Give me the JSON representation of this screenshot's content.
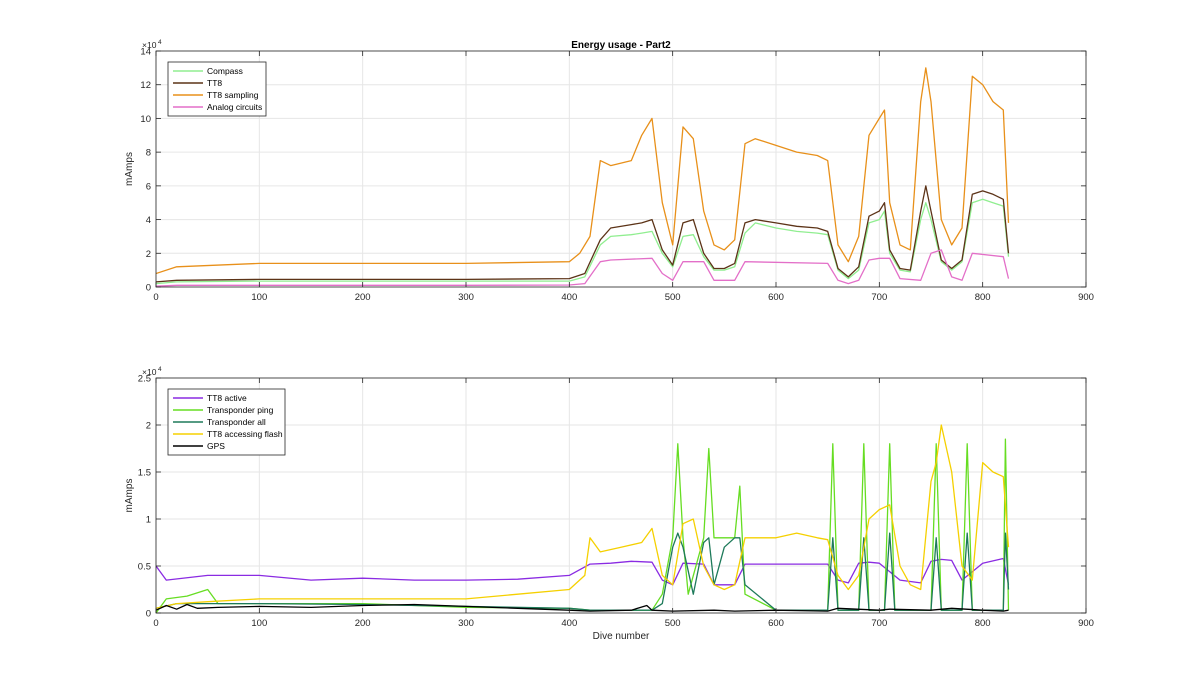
{
  "colors": {
    "compass": "#90ee90",
    "tt8": "#5c3317",
    "tt8_sampling": "#e8901a",
    "analog": "#e36fc8",
    "tt8_active": "#8a2be2",
    "transponder_ping": "#66dd22",
    "transponder_all": "#1e7a5a",
    "tt8_flash": "#f5d000",
    "gps": "#000000"
  },
  "chart_data": [
    {
      "type": "line",
      "title": "Energy usage - Part2",
      "xlabel": "",
      "ylabel": "mAmps",
      "exponent_label": "×10",
      "exponent": "4",
      "xlim": [
        0,
        900
      ],
      "ylim": [
        0,
        140000
      ],
      "xticks": [
        0,
        100,
        200,
        300,
        400,
        500,
        600,
        700,
        800,
        900
      ],
      "yticks": [
        0,
        20000,
        40000,
        60000,
        80000,
        100000,
        120000,
        140000
      ],
      "ytick_labels": [
        "0",
        "2",
        "4",
        "6",
        "8",
        "10",
        "12",
        "14"
      ],
      "grid": true,
      "legend": "top-left",
      "series": [
        {
          "name": "Compass",
          "color_key": "compass",
          "x": [
            0,
            20,
            100,
            200,
            300,
            400,
            415,
            430,
            440,
            460,
            470,
            480,
            490,
            500,
            510,
            520,
            530,
            540,
            550,
            560,
            570,
            580,
            600,
            620,
            640,
            650,
            660,
            670,
            680,
            690,
            700,
            705,
            710,
            720,
            730,
            740,
            745,
            750,
            760,
            770,
            780,
            790,
            800,
            810,
            820,
            825
          ],
          "values": [
            2000,
            3000,
            3500,
            3500,
            3500,
            3500,
            6000,
            25000,
            30000,
            31000,
            32000,
            33000,
            20000,
            12000,
            30000,
            31000,
            18000,
            10000,
            10000,
            12000,
            32000,
            38000,
            35000,
            33000,
            32000,
            31000,
            10000,
            5000,
            10000,
            38000,
            40000,
            45000,
            20000,
            10000,
            9000,
            40000,
            50000,
            40000,
            15000,
            10000,
            15000,
            50000,
            52000,
            50000,
            48000,
            18000
          ]
        },
        {
          "name": "TT8",
          "color_key": "tt8",
          "x": [
            0,
            20,
            100,
            200,
            300,
            400,
            415,
            430,
            440,
            460,
            470,
            480,
            490,
            500,
            510,
            520,
            530,
            540,
            550,
            560,
            570,
            580,
            600,
            620,
            640,
            650,
            660,
            670,
            680,
            690,
            700,
            705,
            710,
            720,
            730,
            740,
            745,
            750,
            760,
            770,
            780,
            790,
            800,
            810,
            820,
            825
          ],
          "values": [
            3000,
            4000,
            4500,
            4500,
            4500,
            5000,
            8000,
            28000,
            35000,
            37000,
            38000,
            40000,
            22000,
            13000,
            38000,
            40000,
            20000,
            11000,
            11000,
            14000,
            38000,
            40000,
            38000,
            36000,
            35000,
            33000,
            11000,
            6000,
            12000,
            42000,
            45000,
            50000,
            22000,
            11000,
            10000,
            45000,
            60000,
            45000,
            16000,
            11000,
            16000,
            55000,
            57000,
            55000,
            52000,
            20000
          ]
        },
        {
          "name": "TT8 sampling",
          "color_key": "tt8_sampling",
          "x": [
            0,
            20,
            100,
            200,
            300,
            400,
            410,
            420,
            430,
            440,
            460,
            470,
            480,
            490,
            500,
            510,
            520,
            530,
            540,
            550,
            560,
            570,
            580,
            600,
            620,
            640,
            650,
            660,
            670,
            680,
            690,
            700,
            705,
            710,
            720,
            730,
            740,
            745,
            750,
            760,
            770,
            780,
            790,
            800,
            810,
            820,
            825
          ],
          "values": [
            8000,
            12000,
            14000,
            14000,
            14000,
            15000,
            20000,
            30000,
            75000,
            72000,
            75000,
            90000,
            100000,
            50000,
            25000,
            95000,
            88000,
            45000,
            25000,
            22000,
            28000,
            85000,
            88000,
            84000,
            80000,
            78000,
            75000,
            25000,
            15000,
            30000,
            90000,
            100000,
            105000,
            50000,
            25000,
            22000,
            110000,
            130000,
            110000,
            40000,
            25000,
            35000,
            125000,
            120000,
            110000,
            105000,
            38000
          ]
        },
        {
          "name": "Analog circuits",
          "color_key": "analog",
          "x": [
            0,
            20,
            100,
            200,
            300,
            400,
            415,
            430,
            440,
            480,
            490,
            500,
            510,
            530,
            540,
            560,
            570,
            650,
            660,
            670,
            680,
            690,
            700,
            710,
            720,
            740,
            750,
            760,
            770,
            780,
            790,
            820,
            825
          ],
          "values": [
            500,
            1000,
            1000,
            1000,
            1000,
            1200,
            2000,
            15000,
            16000,
            17000,
            8000,
            4000,
            15000,
            15000,
            4000,
            4000,
            15000,
            14000,
            4000,
            2000,
            4000,
            16000,
            17000,
            17000,
            5000,
            4000,
            20000,
            22000,
            6000,
            4000,
            20000,
            18000,
            5000
          ]
        }
      ]
    },
    {
      "type": "line",
      "title": "",
      "xlabel": "Dive number",
      "ylabel": "mAmps",
      "exponent_label": "×10",
      "exponent": "4",
      "xlim": [
        0,
        900
      ],
      "ylim": [
        0,
        25000
      ],
      "xticks": [
        0,
        100,
        200,
        300,
        400,
        500,
        600,
        700,
        800,
        900
      ],
      "yticks": [
        0,
        5000,
        10000,
        15000,
        20000,
        25000
      ],
      "ytick_labels": [
        "0",
        "0.5",
        "1",
        "1.5",
        "2",
        "2.5"
      ],
      "grid": true,
      "legend": "top-left",
      "series": [
        {
          "name": "TT8 active",
          "color_key": "tt8_active",
          "x": [
            0,
            10,
            50,
            100,
            150,
            200,
            250,
            300,
            350,
            400,
            420,
            440,
            460,
            480,
            490,
            500,
            510,
            530,
            540,
            560,
            570,
            600,
            650,
            660,
            670,
            680,
            690,
            700,
            720,
            740,
            750,
            760,
            770,
            780,
            800,
            820,
            825
          ],
          "values": [
            5000,
            3500,
            4000,
            4000,
            3500,
            3700,
            3500,
            3500,
            3600,
            4000,
            5200,
            5300,
            5500,
            5400,
            3500,
            3000,
            5300,
            5200,
            3000,
            3000,
            5200,
            5200,
            5200,
            3500,
            3200,
            5300,
            5400,
            5300,
            3500,
            3200,
            5500,
            5700,
            5600,
            3500,
            5300,
            5800,
            3000
          ]
        },
        {
          "name": "Transponder ping",
          "color_key": "transponder_ping",
          "x": [
            0,
            10,
            30,
            50,
            60,
            100,
            200,
            300,
            400,
            420,
            480,
            490,
            500,
            505,
            510,
            515,
            530,
            535,
            540,
            560,
            565,
            570,
            600,
            650,
            655,
            660,
            680,
            685,
            690,
            705,
            710,
            715,
            750,
            755,
            760,
            780,
            785,
            790,
            820,
            822,
            825
          ],
          "values": [
            0,
            1500,
            1800,
            2500,
            1000,
            1000,
            1000,
            600,
            500,
            300,
            300,
            2000,
            8000,
            18000,
            8000,
            2000,
            8000,
            17500,
            8000,
            8000,
            13500,
            2000,
            300,
            300,
            18000,
            300,
            300,
            18000,
            300,
            300,
            18000,
            300,
            300,
            18000,
            300,
            300,
            18000,
            300,
            300,
            18500,
            300
          ]
        },
        {
          "name": "Transponder all",
          "color_key": "transponder_all",
          "x": [
            0,
            20,
            100,
            200,
            300,
            400,
            420,
            480,
            490,
            500,
            505,
            510,
            520,
            530,
            535,
            540,
            550,
            560,
            565,
            570,
            600,
            650,
            655,
            660,
            680,
            685,
            690,
            705,
            710,
            715,
            750,
            755,
            760,
            780,
            785,
            790,
            820,
            822,
            825
          ],
          "values": [
            500,
            1000,
            1000,
            900,
            700,
            500,
            300,
            300,
            1000,
            7000,
            8500,
            7000,
            2000,
            7500,
            8000,
            3000,
            7000,
            8000,
            8000,
            3000,
            300,
            300,
            8000,
            300,
            300,
            8000,
            300,
            300,
            8500,
            300,
            300,
            8000,
            300,
            300,
            8500,
            300,
            300,
            8500,
            2500
          ]
        },
        {
          "name": "TT8 accessing flash",
          "color_key": "tt8_flash",
          "x": [
            0,
            20,
            50,
            100,
            150,
            200,
            250,
            300,
            350,
            400,
            415,
            420,
            430,
            450,
            470,
            480,
            490,
            500,
            510,
            520,
            530,
            540,
            550,
            560,
            570,
            580,
            600,
            620,
            640,
            650,
            660,
            670,
            680,
            690,
            700,
            710,
            720,
            730,
            740,
            750,
            755,
            760,
            770,
            780,
            790,
            800,
            810,
            820,
            825
          ],
          "values": [
            500,
            1000,
            1200,
            1500,
            1500,
            1500,
            1500,
            1500,
            2000,
            2500,
            4000,
            8000,
            6500,
            7000,
            7500,
            9000,
            4000,
            3000,
            9500,
            10000,
            5000,
            3000,
            2500,
            3000,
            8000,
            8000,
            8000,
            8500,
            8000,
            7800,
            4000,
            2500,
            4000,
            10000,
            11000,
            11500,
            5000,
            3000,
            2500,
            14000,
            16000,
            20000,
            15000,
            5000,
            3500,
            16000,
            15000,
            14500,
            7000
          ]
        },
        {
          "name": "GPS",
          "color_key": "gps",
          "x": [
            0,
            10,
            20,
            30,
            40,
            60,
            100,
            150,
            200,
            250,
            300,
            350,
            400,
            420,
            460,
            475,
            480,
            500,
            540,
            560,
            600,
            650,
            660,
            700,
            710,
            750,
            770,
            800,
            820,
            825
          ],
          "values": [
            300,
            800,
            400,
            900,
            500,
            600,
            700,
            600,
            800,
            900,
            700,
            500,
            300,
            200,
            300,
            800,
            300,
            200,
            300,
            200,
            300,
            200,
            500,
            300,
            400,
            300,
            500,
            300,
            200,
            300
          ]
        }
      ]
    }
  ]
}
